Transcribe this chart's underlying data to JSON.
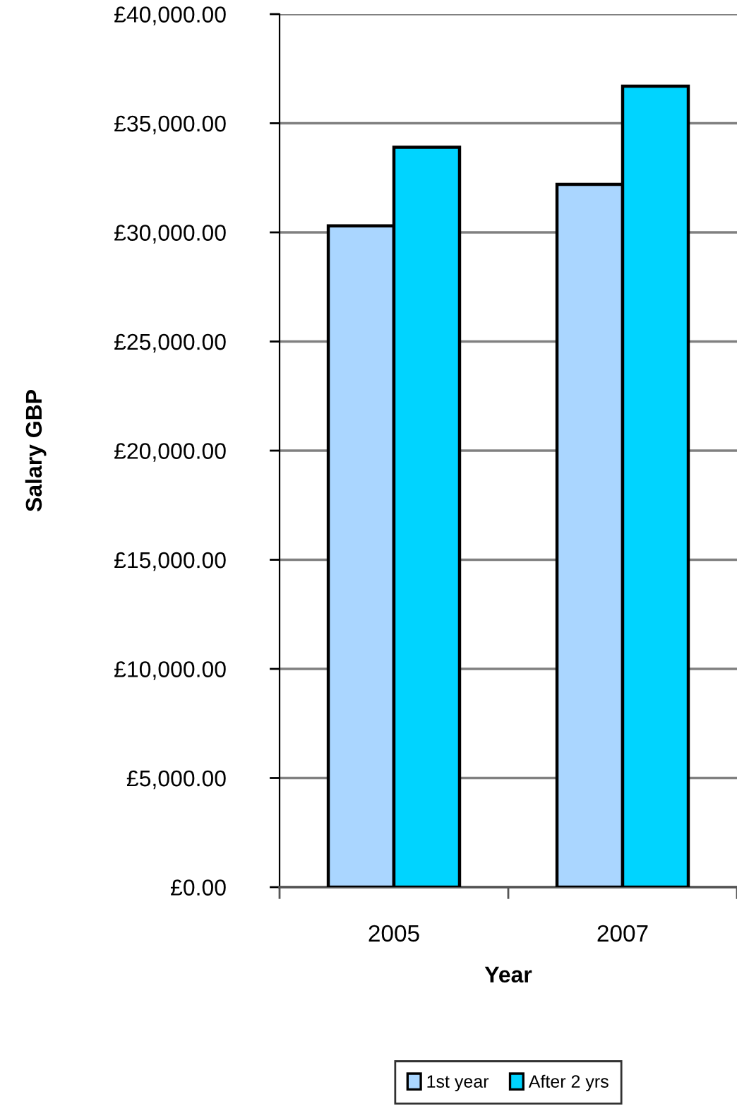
{
  "chart_data": {
    "type": "bar",
    "xlabel": "Year",
    "ylabel": "Salary GBP",
    "categories": [
      "2005",
      "2007"
    ],
    "series": [
      {
        "name": "1st year",
        "color": "#aad6ff",
        "values": [
          30300,
          32200
        ]
      },
      {
        "name": "After 2 yrs",
        "color": "#00d4ff",
        "values": [
          33900,
          36700
        ]
      }
    ],
    "ylim": [
      0,
      40000
    ],
    "yticks": [
      {
        "value": 0,
        "label": "£0.00"
      },
      {
        "value": 5000,
        "label": "£5,000.00"
      },
      {
        "value": 10000,
        "label": "£10,000.00"
      },
      {
        "value": 15000,
        "label": "£15,000.00"
      },
      {
        "value": 20000,
        "label": "£20,000.00"
      },
      {
        "value": 25000,
        "label": "£25,000.00"
      },
      {
        "value": 30000,
        "label": "£30,000.00"
      },
      {
        "value": 35000,
        "label": "£35,000.00"
      },
      {
        "value": 40000,
        "label": "£40,000.00"
      }
    ],
    "grid": "y",
    "legend": "bottom"
  }
}
